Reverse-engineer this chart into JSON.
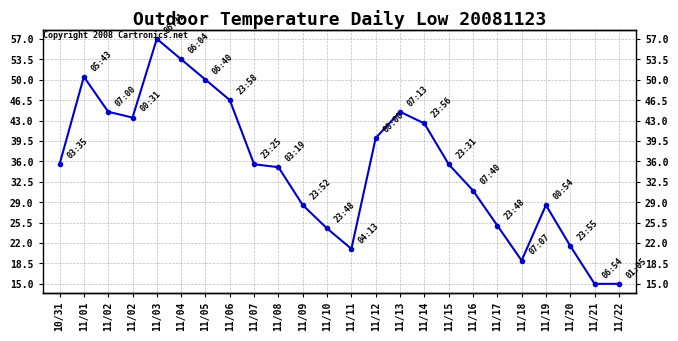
{
  "title": "Outdoor Temperature Daily Low 20081123",
  "copyright": "Copyright 2008 Cartronics.net",
  "x_tick_labels": [
    "10/31",
    "11/01",
    "11/02",
    "11/02",
    "11/03",
    "11/04",
    "11/05",
    "11/06",
    "11/07",
    "11/08",
    "11/09",
    "11/10",
    "11/11",
    "11/12",
    "11/13",
    "11/14",
    "11/15",
    "11/16",
    "11/17",
    "11/18",
    "11/19",
    "11/20",
    "11/21",
    "11/22"
  ],
  "y_values": [
    35.5,
    50.5,
    44.5,
    43.5,
    57.0,
    53.5,
    50.0,
    46.5,
    35.5,
    35.0,
    28.5,
    24.5,
    21.0,
    40.0,
    44.5,
    42.5,
    35.5,
    31.0,
    25.0,
    19.0,
    28.5,
    21.5,
    15.0,
    15.0
  ],
  "time_labels": [
    "03:35",
    "05:43",
    "07:00",
    "00:31",
    "06:31",
    "06:04",
    "06:40",
    "23:58",
    "23:25",
    "03:19",
    "23:52",
    "23:48",
    "04:13",
    "00:00",
    "07:13",
    "23:56",
    "23:31",
    "07:40",
    "23:48",
    "07:07",
    "00:54",
    "23:55",
    "06:54",
    "01:05"
  ],
  "ylim": [
    13.5,
    58.5
  ],
  "yticks": [
    15.0,
    18.5,
    22.0,
    25.5,
    29.0,
    32.5,
    36.0,
    39.5,
    43.0,
    46.5,
    50.0,
    53.5,
    57.0
  ],
  "line_color": "#0000cc",
  "marker_color": "#0000cc",
  "bg_color": "#ffffff",
  "grid_color": "#aaaaaa",
  "title_fontsize": 13,
  "tick_fontsize": 7,
  "annotation_fontsize": 6,
  "copyright_fontsize": 6
}
